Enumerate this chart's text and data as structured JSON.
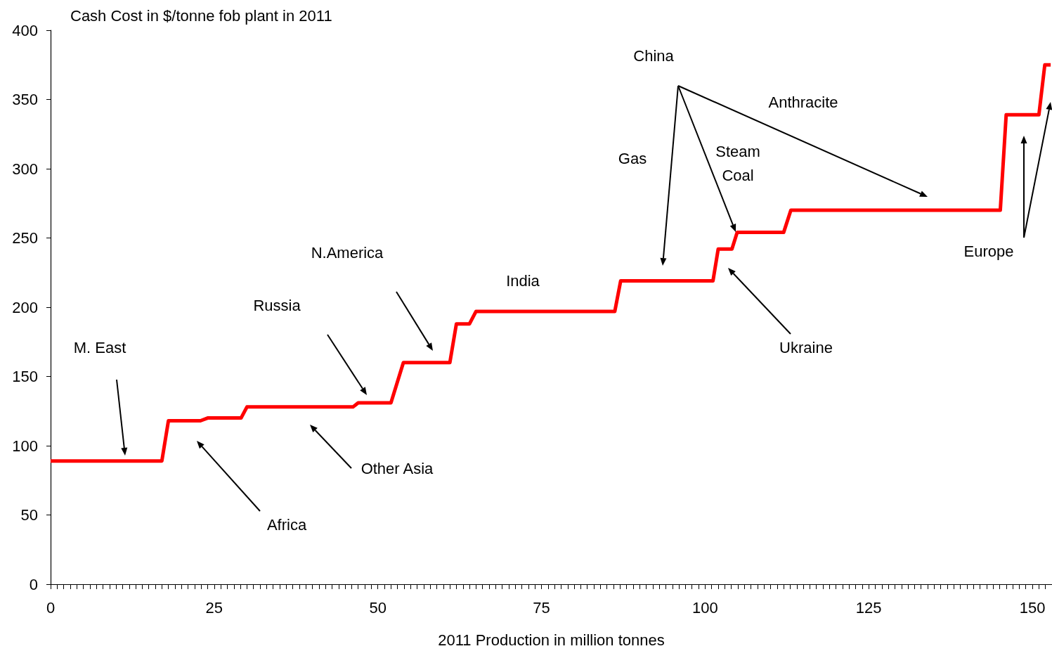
{
  "chart_data": {
    "type": "line",
    "ylabel": "Cash Cost in $/tonne fob plant in 2011",
    "xlabel": "2011 Production in million tonnes",
    "series": [
      {
        "color": "#ff0000",
        "x": [
          0,
          17.0,
          18.0,
          22.9,
          24.0,
          29.1,
          30.0,
          46.2,
          47.0,
          52.0,
          53.9,
          61.0,
          62.0,
          64.0,
          65.0,
          86.2,
          87.1,
          101.2,
          102.0,
          104.1,
          104.9,
          112.0,
          113.1,
          145.1,
          146.0,
          151.0,
          151.9,
          152.8
        ],
        "values": [
          89,
          89,
          118,
          118,
          120,
          120,
          128,
          128,
          131,
          131,
          160,
          160,
          188,
          188,
          197,
          197,
          219,
          219,
          242,
          242,
          254,
          254,
          270,
          270,
          339,
          339,
          375,
          375
        ]
      }
    ],
    "xlim": [
      0,
      153
    ],
    "xticks": [
      0,
      {
        "value": 1,
        "label": null
      },
      {
        "value": 2,
        "label": null
      },
      {
        "value": 3,
        "label": null
      },
      {
        "value": 4,
        "label": null
      },
      {
        "value": 5,
        "label": null
      },
      {
        "value": 6,
        "label": null
      },
      {
        "value": 7,
        "label": null
      },
      {
        "value": 8,
        "label": null
      },
      {
        "value": 9,
        "label": null
      },
      {
        "value": 10,
        "label": null
      },
      {
        "value": 11,
        "label": null
      },
      {
        "value": 12,
        "label": null
      },
      {
        "value": 13,
        "label": null
      },
      {
        "value": 14,
        "label": null
      },
      {
        "value": 15,
        "label": null
      },
      {
        "value": 16,
        "label": null
      },
      {
        "value": 17,
        "label": null
      },
      {
        "value": 18,
        "label": null
      },
      {
        "value": 19,
        "label": null
      },
      {
        "value": 20,
        "label": null
      },
      {
        "value": 21,
        "label": null
      },
      {
        "value": 22,
        "label": null
      },
      {
        "value": 23,
        "label": null
      },
      {
        "value": 24,
        "label": null
      },
      25,
      {
        "value": 26,
        "label": null
      },
      {
        "value": 27,
        "label": null
      },
      {
        "value": 28,
        "label": null
      },
      {
        "value": 29,
        "label": null
      },
      {
        "value": 30,
        "label": null
      },
      {
        "value": 31,
        "label": null
      },
      {
        "value": 32,
        "label": null
      },
      {
        "value": 33,
        "label": null
      },
      {
        "value": 34,
        "label": null
      },
      {
        "value": 35,
        "label": null
      },
      {
        "value": 36,
        "label": null
      },
      {
        "value": 37,
        "label": null
      },
      {
        "value": 38,
        "label": null
      },
      {
        "value": 39,
        "label": null
      },
      {
        "value": 40,
        "label": null
      },
      {
        "value": 41,
        "label": null
      },
      {
        "value": 42,
        "label": null
      },
      {
        "value": 43,
        "label": null
      },
      {
        "value": 44,
        "label": null
      },
      {
        "value": 45,
        "label": null
      },
      {
        "value": 46,
        "label": null
      },
      {
        "value": 47,
        "label": null
      },
      {
        "value": 48,
        "label": null
      },
      {
        "value": 49,
        "label": null
      },
      50,
      {
        "value": 51,
        "label": null
      },
      {
        "value": 52,
        "label": null
      },
      {
        "value": 53,
        "label": null
      },
      {
        "value": 54,
        "label": null
      },
      {
        "value": 55,
        "label": null
      },
      {
        "value": 56,
        "label": null
      },
      {
        "value": 57,
        "label": null
      },
      {
        "value": 58,
        "label": null
      },
      {
        "value": 59,
        "label": null
      },
      {
        "value": 60,
        "label": null
      },
      {
        "value": 61,
        "label": null
      },
      {
        "value": 62,
        "label": null
      },
      {
        "value": 63,
        "label": null
      },
      {
        "value": 64,
        "label": null
      },
      {
        "value": 65,
        "label": null
      },
      {
        "value": 66,
        "label": null
      },
      {
        "value": 67,
        "label": null
      },
      {
        "value": 68,
        "label": null
      },
      {
        "value": 69,
        "label": null
      },
      {
        "value": 70,
        "label": null
      },
      {
        "value": 71,
        "label": null
      },
      {
        "value": 72,
        "label": null
      },
      {
        "value": 73,
        "label": null
      },
      {
        "value": 74,
        "label": null
      },
      75,
      {
        "value": 76,
        "label": null
      },
      {
        "value": 77,
        "label": null
      },
      {
        "value": 78,
        "label": null
      },
      {
        "value": 79,
        "label": null
      },
      {
        "value": 80,
        "label": null
      },
      {
        "value": 81,
        "label": null
      },
      {
        "value": 82,
        "label": null
      },
      {
        "value": 83,
        "label": null
      },
      {
        "value": 84,
        "label": null
      },
      {
        "value": 85,
        "label": null
      },
      {
        "value": 86,
        "label": null
      },
      {
        "value": 87,
        "label": null
      },
      {
        "value": 88,
        "label": null
      },
      {
        "value": 89,
        "label": null
      },
      {
        "value": 90,
        "label": null
      },
      {
        "value": 91,
        "label": null
      },
      {
        "value": 92,
        "label": null
      },
      {
        "value": 93,
        "label": null
      },
      {
        "value": 94,
        "label": null
      },
      {
        "value": 95,
        "label": null
      },
      {
        "value": 96,
        "label": null
      },
      {
        "value": 97,
        "label": null
      },
      {
        "value": 98,
        "label": null
      },
      {
        "value": 99,
        "label": null
      },
      100,
      {
        "value": 101,
        "label": null
      },
      {
        "value": 102,
        "label": null
      },
      {
        "value": 103,
        "label": null
      },
      {
        "value": 104,
        "label": null
      },
      {
        "value": 105,
        "label": null
      },
      {
        "value": 106,
        "label": null
      },
      {
        "value": 107,
        "label": null
      },
      {
        "value": 108,
        "label": null
      },
      {
        "value": 109,
        "label": null
      },
      {
        "value": 110,
        "label": null
      },
      {
        "value": 111,
        "label": null
      },
      {
        "value": 112,
        "label": null
      },
      {
        "value": 113,
        "label": null
      },
      {
        "value": 114,
        "label": null
      },
      {
        "value": 115,
        "label": null
      },
      {
        "value": 116,
        "label": null
      },
      {
        "value": 117,
        "label": null
      },
      {
        "value": 118,
        "label": null
      },
      {
        "value": 119,
        "label": null
      },
      {
        "value": 120,
        "label": null
      },
      {
        "value": 121,
        "label": null
      },
      {
        "value": 122,
        "label": null
      },
      {
        "value": 123,
        "label": null
      },
      {
        "value": 124,
        "label": null
      },
      125,
      {
        "value": 126,
        "label": null
      },
      {
        "value": 127,
        "label": null
      },
      {
        "value": 128,
        "label": null
      },
      {
        "value": 129,
        "label": null
      },
      {
        "value": 130,
        "label": null
      },
      {
        "value": 131,
        "label": null
      },
      {
        "value": 132,
        "label": null
      },
      {
        "value": 133,
        "label": null
      },
      {
        "value": 134,
        "label": null
      },
      {
        "value": 135,
        "label": null
      },
      {
        "value": 136,
        "label": null
      },
      {
        "value": 137,
        "label": null
      },
      {
        "value": 138,
        "label": null
      },
      {
        "value": 139,
        "label": null
      },
      {
        "value": 140,
        "label": null
      },
      {
        "value": 141,
        "label": null
      },
      {
        "value": 142,
        "label": null
      },
      {
        "value": 143,
        "label": null
      },
      {
        "value": 144,
        "label": null
      },
      {
        "value": 145,
        "label": null
      },
      {
        "value": 146,
        "label": null
      },
      {
        "value": 147,
        "label": null
      },
      {
        "value": 148,
        "label": null
      },
      {
        "value": 149,
        "label": null
      },
      150,
      {
        "value": 151,
        "label": null
      },
      {
        "value": 152,
        "label": null
      },
      {
        "value": 153,
        "label": null
      }
    ],
    "ylim": [
      0,
      400
    ],
    "yticks": [
      0,
      50,
      100,
      150,
      200,
      250,
      300,
      350,
      400
    ],
    "grid": false,
    "marker": "none",
    "line_style": "solid",
    "annotations": [
      "M. East",
      "Africa",
      "Other Asia",
      "Russia",
      "N.America",
      "India",
      "China",
      "Gas",
      "Steam\nCoal",
      "Anthracite",
      "Ukraine",
      "Europe"
    ]
  }
}
